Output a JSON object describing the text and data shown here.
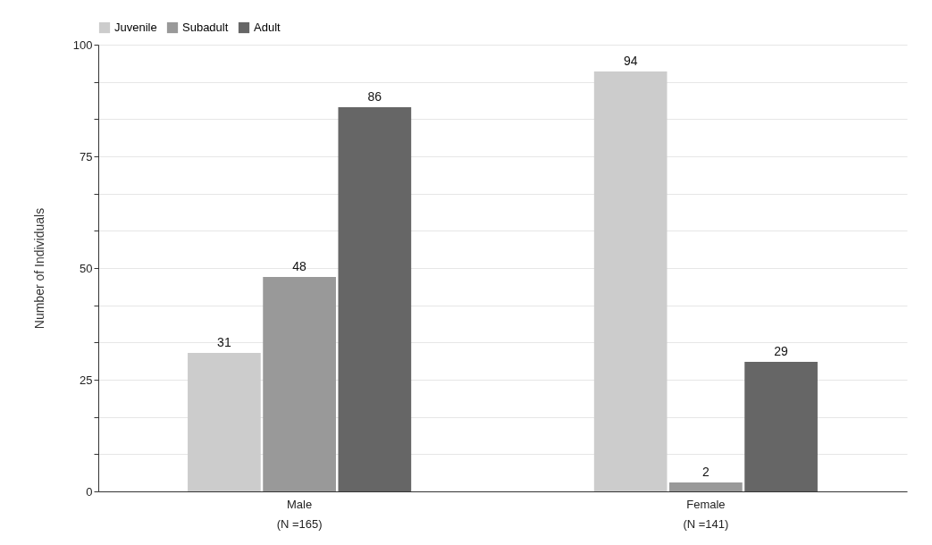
{
  "chart_data": {
    "type": "bar",
    "ylabel": "Number of Individuals",
    "categories": [
      "Male\n(N =165)",
      "Female\n(N =141)"
    ],
    "series": [
      {
        "name": "Juvenile",
        "color": "#cccccc",
        "values": [
          31,
          94
        ]
      },
      {
        "name": "Subadult",
        "color": "#999999",
        "values": [
          48,
          2
        ]
      },
      {
        "name": "Adult",
        "color": "#666666",
        "values": [
          86,
          29
        ]
      }
    ],
    "ylim": [
      0,
      100
    ],
    "yticks": [
      0,
      {
        "value": 8.33,
        "label": null
      },
      {
        "value": 16.67,
        "label": null
      },
      25,
      {
        "value": 33.33,
        "label": null
      },
      {
        "value": 41.67,
        "label": null
      },
      50,
      {
        "value": 58.33,
        "label": null
      },
      {
        "value": 66.67,
        "label": null
      },
      75,
      {
        "value": 83.33,
        "label": null
      },
      {
        "value": 91.67,
        "label": null
      },
      100
    ],
    "grid": "y",
    "legend": "top",
    "data_labels": true
  }
}
